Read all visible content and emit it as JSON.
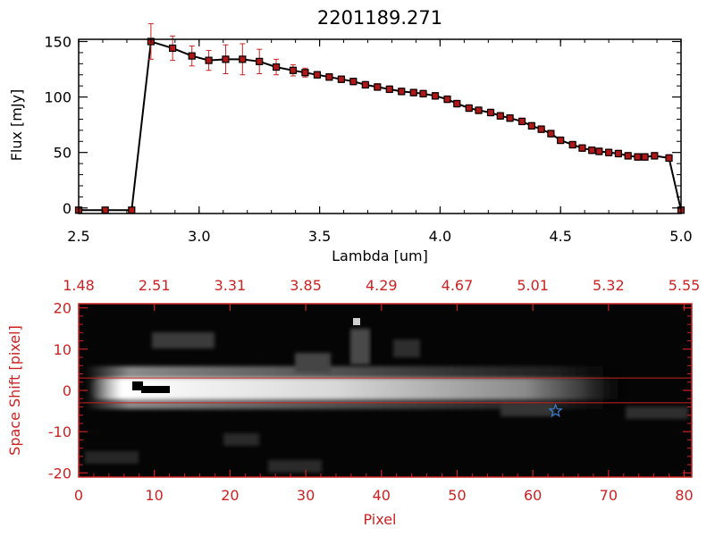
{
  "chart_data": [
    {
      "type": "line",
      "title": "2201189.271",
      "xlabel": "Lambda [um]",
      "ylabel": "Flux [mJy]",
      "xlim": [
        2.5,
        5.0
      ],
      "ylim": [
        -5,
        152
      ],
      "xticks": [
        2.5,
        3.0,
        3.5,
        4.0,
        4.5,
        5.0
      ],
      "xtick_labels": [
        "2.5",
        "3.0",
        "3.5",
        "4.0",
        "4.5",
        "5.0"
      ],
      "yticks": [
        0,
        50,
        100,
        150
      ],
      "ytick_labels": [
        "0",
        "50",
        "100",
        "150"
      ],
      "line_color": "#000000",
      "marker_color": "#b01818",
      "errorbar_color": "#cc2222",
      "series": [
        {
          "x": [
            2.5,
            2.61,
            2.72,
            2.8,
            2.89,
            2.97,
            3.04,
            3.11,
            3.18,
            3.25,
            3.32,
            3.39,
            3.44,
            3.49,
            3.54,
            3.59,
            3.64,
            3.69,
            3.74,
            3.79,
            3.84,
            3.89,
            3.93,
            3.98,
            4.03,
            4.07,
            4.12,
            4.16,
            4.21,
            4.25,
            4.29,
            4.34,
            4.38,
            4.42,
            4.46,
            4.5,
            4.55,
            4.59,
            4.63,
            4.66,
            4.7,
            4.74,
            4.78,
            4.82,
            4.85,
            4.89,
            4.95,
            5.0
          ],
          "y": [
            -2,
            -2,
            -2,
            150,
            144,
            137,
            133,
            134,
            134,
            132,
            127,
            124,
            122,
            120,
            118,
            116,
            114,
            111,
            109,
            107,
            105,
            104,
            103,
            101,
            98,
            94,
            90,
            88,
            86,
            83,
            81,
            78,
            74,
            71,
            67,
            61,
            57,
            54,
            52,
            51,
            50,
            49,
            47,
            46,
            46,
            47,
            45,
            -2
          ],
          "yerr": [
            0,
            0,
            0,
            16,
            11,
            9,
            9,
            13,
            14,
            11,
            7,
            5,
            4,
            3,
            3,
            3,
            3,
            3,
            3,
            3,
            3,
            3,
            3,
            3,
            3,
            3,
            3,
            3,
            3,
            3,
            3,
            3,
            3,
            3,
            3,
            3,
            3,
            3,
            3,
            3,
            3,
            3,
            3,
            3,
            3,
            3,
            3,
            0
          ]
        }
      ]
    },
    {
      "type": "heatmap",
      "xlabel": "Pixel",
      "ylabel": "Space Shift [pixel]",
      "xlim": [
        0,
        81
      ],
      "ylim": [
        -21,
        21
      ],
      "xticks": [
        0,
        10,
        20,
        30,
        40,
        50,
        60,
        70,
        80
      ],
      "xtick_labels": [
        "0",
        "10",
        "20",
        "30",
        "40",
        "50",
        "60",
        "70",
        "80"
      ],
      "yticks": [
        -20,
        -10,
        0,
        10,
        20
      ],
      "ytick_labels": [
        "-20",
        "-10",
        "0",
        "10",
        "20"
      ],
      "top_ticks": [
        0,
        10,
        20,
        30,
        40,
        50,
        60,
        70,
        80
      ],
      "top_tick_labels": [
        "1.48",
        "2.51",
        "3.31",
        "3.85",
        "4.29",
        "4.67",
        "5.01",
        "5.32",
        "5.55"
      ],
      "axis_color": "#cc2222",
      "aperture_lines": [
        3,
        -3
      ],
      "star_marker": {
        "x": 63,
        "y": -5,
        "color": "#3a7fd0"
      }
    }
  ]
}
